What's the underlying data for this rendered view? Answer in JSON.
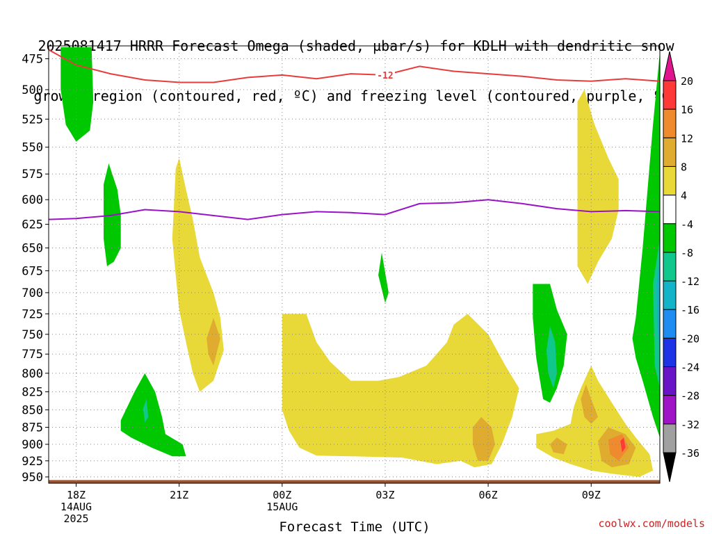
{
  "title": {
    "line1": "2025081417 HRRR Forecast Omega (shaded, µbar/s) for KDLH with dendritic snow",
    "line2": "growth region (contoured, red, ºC) and freezing level (contoured, purple, ºC)"
  },
  "credit": "coolwx.com/models",
  "colors": {
    "dgz_contour": "#e83c3c",
    "freezing_level": "#9a12c8",
    "terrain": "#a0522d",
    "grid": "#888888"
  },
  "chart_data": {
    "type": "contour",
    "xlabel": "Forecast Time (UTC)",
    "ylabel": "",
    "y_scale": "pressure (mb, inverted)",
    "ylim": [
      960,
      465
    ],
    "xlim_hours": [
      -0.8,
      17
    ],
    "y_ticks": [
      475,
      500,
      525,
      550,
      575,
      600,
      625,
      650,
      675,
      700,
      725,
      750,
      775,
      800,
      825,
      850,
      875,
      900,
      925,
      950
    ],
    "x_ticks": [
      {
        "hour": 0,
        "lines": [
          "18Z",
          "14AUG",
          "2025"
        ]
      },
      {
        "hour": 3,
        "lines": [
          "21Z"
        ]
      },
      {
        "hour": 6,
        "lines": [
          "00Z",
          "15AUG"
        ]
      },
      {
        "hour": 9,
        "lines": [
          "03Z"
        ]
      },
      {
        "hour": 12,
        "lines": [
          "06Z"
        ]
      },
      {
        "hour": 15,
        "lines": [
          "09Z"
        ]
      }
    ],
    "colorbar": {
      "units": "µbar/s",
      "levels": [
        20,
        16,
        12,
        8,
        4,
        -4,
        -8,
        -12,
        -16,
        -20,
        -24,
        -28,
        -32,
        -36
      ],
      "bands": [
        {
          "from": 16,
          "to": 20,
          "color": "#ff3838"
        },
        {
          "from": 12,
          "to": 16,
          "color": "#f08a2e"
        },
        {
          "from": 8,
          "to": 12,
          "color": "#e0ac30"
        },
        {
          "from": 4,
          "to": 8,
          "color": "#e8d838"
        },
        {
          "from": -4,
          "to": 4,
          "color": "#ffffff"
        },
        {
          "from": -8,
          "to": -4,
          "color": "#00c800"
        },
        {
          "from": -12,
          "to": -8,
          "color": "#10c88c"
        },
        {
          "from": -16,
          "to": -12,
          "color": "#14b4c8"
        },
        {
          "from": -20,
          "to": -16,
          "color": "#1e8cf0"
        },
        {
          "from": -24,
          "to": -20,
          "color": "#1e32e6"
        },
        {
          "from": -28,
          "to": -24,
          "color": "#6a14c8"
        },
        {
          "from": -32,
          "to": -28,
          "color": "#a014c8"
        },
        {
          "from": -36,
          "to": -32,
          "color": "#a0a0a0"
        }
      ],
      "top_arrow_color": "#e0148c",
      "bottom_arrow_color": "#000000"
    },
    "dgz_contour": {
      "label": "-12",
      "label_hour": 9,
      "points": [
        [
          -0.8,
          468
        ],
        [
          0,
          480
        ],
        [
          1,
          487
        ],
        [
          2,
          492
        ],
        [
          3,
          494
        ],
        [
          4,
          494
        ],
        [
          5,
          490
        ],
        [
          6,
          488
        ],
        [
          7,
          491
        ],
        [
          8,
          487
        ],
        [
          9,
          488
        ],
        [
          10,
          481
        ],
        [
          11,
          485
        ],
        [
          12,
          487
        ],
        [
          13,
          489
        ],
        [
          14,
          492
        ],
        [
          15,
          493
        ],
        [
          16,
          491
        ],
        [
          17,
          493
        ]
      ]
    },
    "freezing_level": {
      "points": [
        [
          -0.8,
          620
        ],
        [
          0,
          619
        ],
        [
          1,
          616
        ],
        [
          2,
          610
        ],
        [
          3,
          612
        ],
        [
          4,
          616
        ],
        [
          5,
          620
        ],
        [
          6,
          615
        ],
        [
          7,
          612
        ],
        [
          8,
          613
        ],
        [
          9,
          615
        ],
        [
          10,
          604
        ],
        [
          11,
          603
        ],
        [
          12,
          600
        ],
        [
          13,
          604
        ],
        [
          14,
          609
        ],
        [
          15,
          612
        ],
        [
          16,
          611
        ],
        [
          17,
          612
        ]
      ]
    },
    "omega_regions": [
      {
        "band": "-8..-4",
        "points": [
          [
            -0.45,
            466
          ],
          [
            0.45,
            466
          ],
          [
            0.5,
            510
          ],
          [
            0.4,
            535
          ],
          [
            0,
            545
          ],
          [
            -0.3,
            530
          ],
          [
            -0.45,
            500
          ]
        ]
      },
      {
        "band": "-8..-4",
        "points": [
          [
            0.8,
            585
          ],
          [
            0.95,
            565
          ],
          [
            1.2,
            590
          ],
          [
            1.3,
            615
          ],
          [
            1.3,
            650
          ],
          [
            1.1,
            665
          ],
          [
            0.9,
            670
          ],
          [
            0.8,
            640
          ]
        ]
      },
      {
        "band": "-8..-4",
        "points": [
          [
            1.3,
            865
          ],
          [
            1.7,
            825
          ],
          [
            2.0,
            800
          ],
          [
            2.3,
            825
          ],
          [
            2.5,
            860
          ],
          [
            2.6,
            885
          ],
          [
            3.1,
            900
          ],
          [
            3.2,
            918
          ],
          [
            2.8,
            918
          ],
          [
            2.2,
            905
          ],
          [
            1.6,
            890
          ],
          [
            1.3,
            880
          ]
        ]
      },
      {
        "band": "-12..-8",
        "points": [
          [
            1.95,
            848
          ],
          [
            2.05,
            835
          ],
          [
            2.1,
            860
          ],
          [
            2.0,
            868
          ]
        ]
      },
      {
        "band": "-8..-4",
        "points": [
          [
            8.8,
            680
          ],
          [
            8.9,
            655
          ],
          [
            9.1,
            700
          ],
          [
            9.0,
            712
          ]
        ]
      },
      {
        "band": "-8..-4",
        "points": [
          [
            13.3,
            690
          ],
          [
            13.8,
            690
          ],
          [
            14.0,
            720
          ],
          [
            14.3,
            750
          ],
          [
            14.2,
            790
          ],
          [
            14.0,
            820
          ],
          [
            13.8,
            840
          ],
          [
            13.6,
            835
          ],
          [
            13.4,
            780
          ],
          [
            13.3,
            730
          ]
        ]
      },
      {
        "band": "-12..-8",
        "points": [
          [
            13.8,
            740
          ],
          [
            13.95,
            760
          ],
          [
            14.0,
            800
          ],
          [
            13.9,
            820
          ],
          [
            13.75,
            800
          ],
          [
            13.7,
            770
          ]
        ]
      },
      {
        "band": "-8..-4",
        "points": [
          [
            16.2,
            755
          ],
          [
            16.3,
            730
          ],
          [
            16.5,
            650
          ],
          [
            16.8,
            530
          ],
          [
            17.0,
            470
          ],
          [
            17.0,
            890
          ],
          [
            16.8,
            860
          ],
          [
            16.5,
            810
          ],
          [
            16.3,
            780
          ]
        ]
      },
      {
        "band": "-12..-8",
        "points": [
          [
            16.8,
            690
          ],
          [
            17.0,
            640
          ],
          [
            17.0,
            820
          ],
          [
            16.85,
            790
          ]
        ]
      },
      {
        "band": "-16..-12",
        "points": [
          [
            16.9,
            690
          ],
          [
            17.0,
            660
          ],
          [
            17.0,
            770
          ],
          [
            16.92,
            740
          ]
        ]
      },
      {
        "band": "4..8",
        "points": [
          [
            2.8,
            640
          ],
          [
            2.9,
            570
          ],
          [
            3.0,
            560
          ],
          [
            3.2,
            590
          ],
          [
            3.4,
            620
          ],
          [
            3.6,
            660
          ],
          [
            3.8,
            680
          ],
          [
            4.0,
            700
          ],
          [
            4.2,
            730
          ],
          [
            4.3,
            770
          ],
          [
            4.0,
            810
          ],
          [
            3.6,
            825
          ],
          [
            3.4,
            800
          ],
          [
            3.2,
            760
          ],
          [
            3.0,
            720
          ],
          [
            2.9,
            680
          ]
        ]
      },
      {
        "band": "8..12",
        "points": [
          [
            3.8,
            755
          ],
          [
            4.0,
            730
          ],
          [
            4.2,
            755
          ],
          [
            4.0,
            790
          ],
          [
            3.85,
            775
          ]
        ]
      },
      {
        "band": "4..8",
        "points": [
          [
            6.0,
            740
          ],
          [
            6.0,
            725
          ],
          [
            6.7,
            725
          ],
          [
            7.0,
            760
          ],
          [
            7.4,
            785
          ],
          [
            8.0,
            810
          ],
          [
            8.8,
            810
          ],
          [
            9.4,
            805
          ],
          [
            10.2,
            790
          ],
          [
            10.8,
            760
          ],
          [
            11.0,
            738
          ],
          [
            11.4,
            725
          ],
          [
            12.0,
            750
          ],
          [
            12.5,
            790
          ],
          [
            12.9,
            820
          ],
          [
            12.7,
            860
          ],
          [
            12.4,
            900
          ],
          [
            12.1,
            930
          ],
          [
            11.6,
            935
          ],
          [
            11.2,
            925
          ],
          [
            10.5,
            930
          ],
          [
            9.5,
            920
          ],
          [
            8.0,
            918
          ],
          [
            7.0,
            917
          ],
          [
            6.5,
            905
          ],
          [
            6.2,
            880
          ],
          [
            6.0,
            850
          ],
          [
            6.0,
            800
          ]
        ]
      },
      {
        "band": "8..12",
        "points": [
          [
            11.55,
            875
          ],
          [
            11.8,
            860
          ],
          [
            12.1,
            875
          ],
          [
            12.2,
            900
          ],
          [
            12.0,
            925
          ],
          [
            11.7,
            925
          ],
          [
            11.55,
            900
          ]
        ]
      },
      {
        "band": "4..8",
        "points": [
          [
            14.6,
            510
          ],
          [
            14.8,
            500
          ],
          [
            15.1,
            530
          ],
          [
            15.5,
            560
          ],
          [
            15.8,
            580
          ],
          [
            15.8,
            610
          ],
          [
            15.6,
            640
          ],
          [
            15.2,
            665
          ],
          [
            14.9,
            690
          ],
          [
            14.6,
            670
          ],
          [
            14.6,
            600
          ]
        ]
      },
      {
        "band": "4..8",
        "points": [
          [
            14.5,
            845
          ],
          [
            14.7,
            820
          ],
          [
            15.0,
            790
          ],
          [
            15.2,
            810
          ],
          [
            15.6,
            840
          ],
          [
            16.0,
            870
          ],
          [
            16.3,
            890
          ],
          [
            16.7,
            915
          ],
          [
            16.8,
            940
          ],
          [
            16.4,
            950
          ],
          [
            15.6,
            945
          ],
          [
            15.0,
            940
          ],
          [
            14.4,
            930
          ],
          [
            13.9,
            920
          ],
          [
            13.4,
            905
          ],
          [
            13.4,
            885
          ],
          [
            13.9,
            880
          ],
          [
            14.4,
            870
          ]
        ]
      },
      {
        "band": "8..12",
        "points": [
          [
            14.7,
            835
          ],
          [
            14.85,
            815
          ],
          [
            15.0,
            835
          ],
          [
            15.2,
            860
          ],
          [
            15.0,
            870
          ],
          [
            14.8,
            860
          ]
        ]
      },
      {
        "band": "8..12",
        "points": [
          [
            13.8,
            900
          ],
          [
            14.0,
            890
          ],
          [
            14.3,
            900
          ],
          [
            14.2,
            915
          ],
          [
            13.9,
            912
          ]
        ]
      },
      {
        "band": "8..12",
        "points": [
          [
            15.2,
            895
          ],
          [
            15.5,
            875
          ],
          [
            16.0,
            885
          ],
          [
            16.3,
            905
          ],
          [
            16.1,
            930
          ],
          [
            15.6,
            935
          ],
          [
            15.3,
            925
          ]
        ]
      },
      {
        "band": "12..16",
        "points": [
          [
            15.5,
            893
          ],
          [
            15.9,
            885
          ],
          [
            16.1,
            905
          ],
          [
            15.8,
            925
          ],
          [
            15.55,
            915
          ]
        ]
      },
      {
        "band": "16..20",
        "points": [
          [
            15.85,
            895
          ],
          [
            15.95,
            890
          ],
          [
            16.0,
            905
          ],
          [
            15.9,
            912
          ]
        ]
      }
    ],
    "terrain_mb": 955
  }
}
